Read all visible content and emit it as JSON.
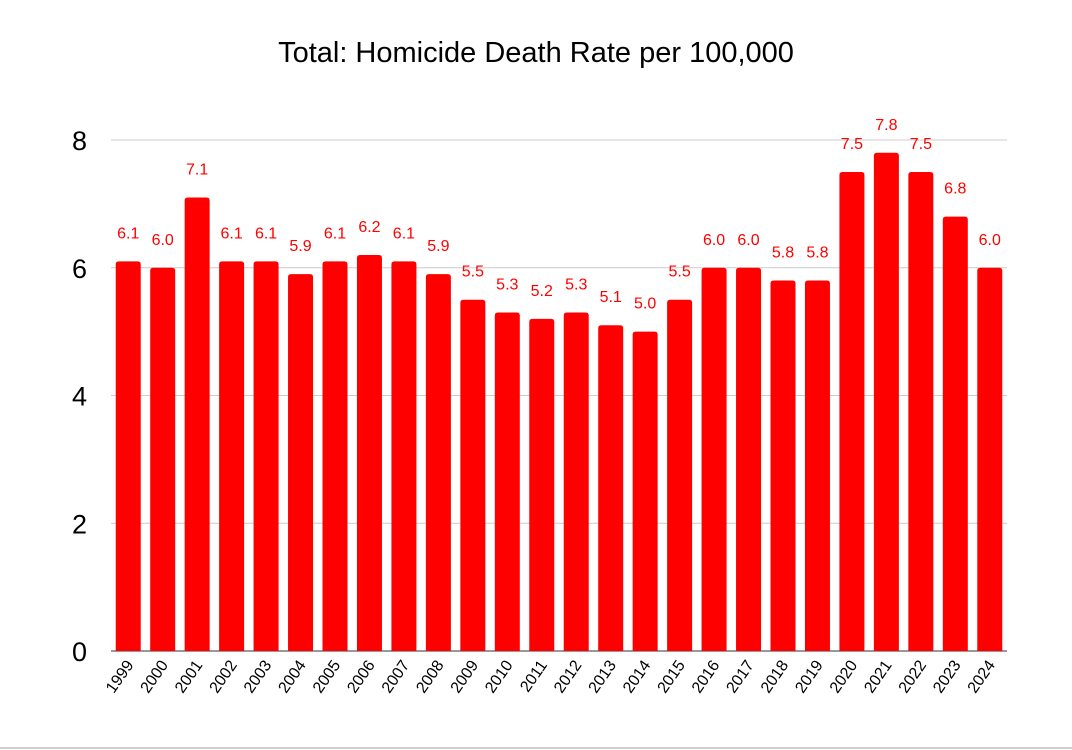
{
  "chart_data": {
    "type": "bar",
    "title": "Total: Homicide Death Rate per 100,000",
    "xlabel": "",
    "ylabel": "",
    "categories": [
      "1999",
      "2000",
      "2001",
      "2002",
      "2003",
      "2004",
      "2005",
      "2006",
      "2007",
      "2008",
      "2009",
      "2010",
      "2011",
      "2012",
      "2013",
      "2014",
      "2015",
      "2016",
      "2017",
      "2018",
      "2019",
      "2020",
      "2021",
      "2022",
      "2023",
      "2024"
    ],
    "values": [
      6.1,
      6.0,
      7.1,
      6.1,
      6.1,
      5.9,
      6.1,
      6.2,
      6.1,
      5.9,
      5.5,
      5.3,
      5.2,
      5.3,
      5.1,
      5.0,
      5.5,
      6.0,
      6.0,
      5.8,
      5.8,
      7.5,
      7.8,
      7.5,
      6.8,
      6.0
    ],
    "data_labels": [
      "6.1",
      "6.0",
      "7.1",
      "6.1",
      "6.1",
      "5.9",
      "6.1",
      "6.2",
      "6.1",
      "5.9",
      "5.5",
      "5.3",
      "5.2",
      "5.3",
      "5.1",
      "5.0",
      "5.5",
      "6.0",
      "6.0",
      "5.8",
      "5.8",
      "7.5",
      "7.8",
      "7.5",
      "6.8",
      "6.0"
    ],
    "y_ticks": [
      "0",
      "2",
      "4",
      "6",
      "8"
    ],
    "ylim": [
      0,
      8.6
    ],
    "grid": true,
    "legend": "none",
    "bar_color": "#ff0000",
    "label_color": "#ff0000"
  }
}
